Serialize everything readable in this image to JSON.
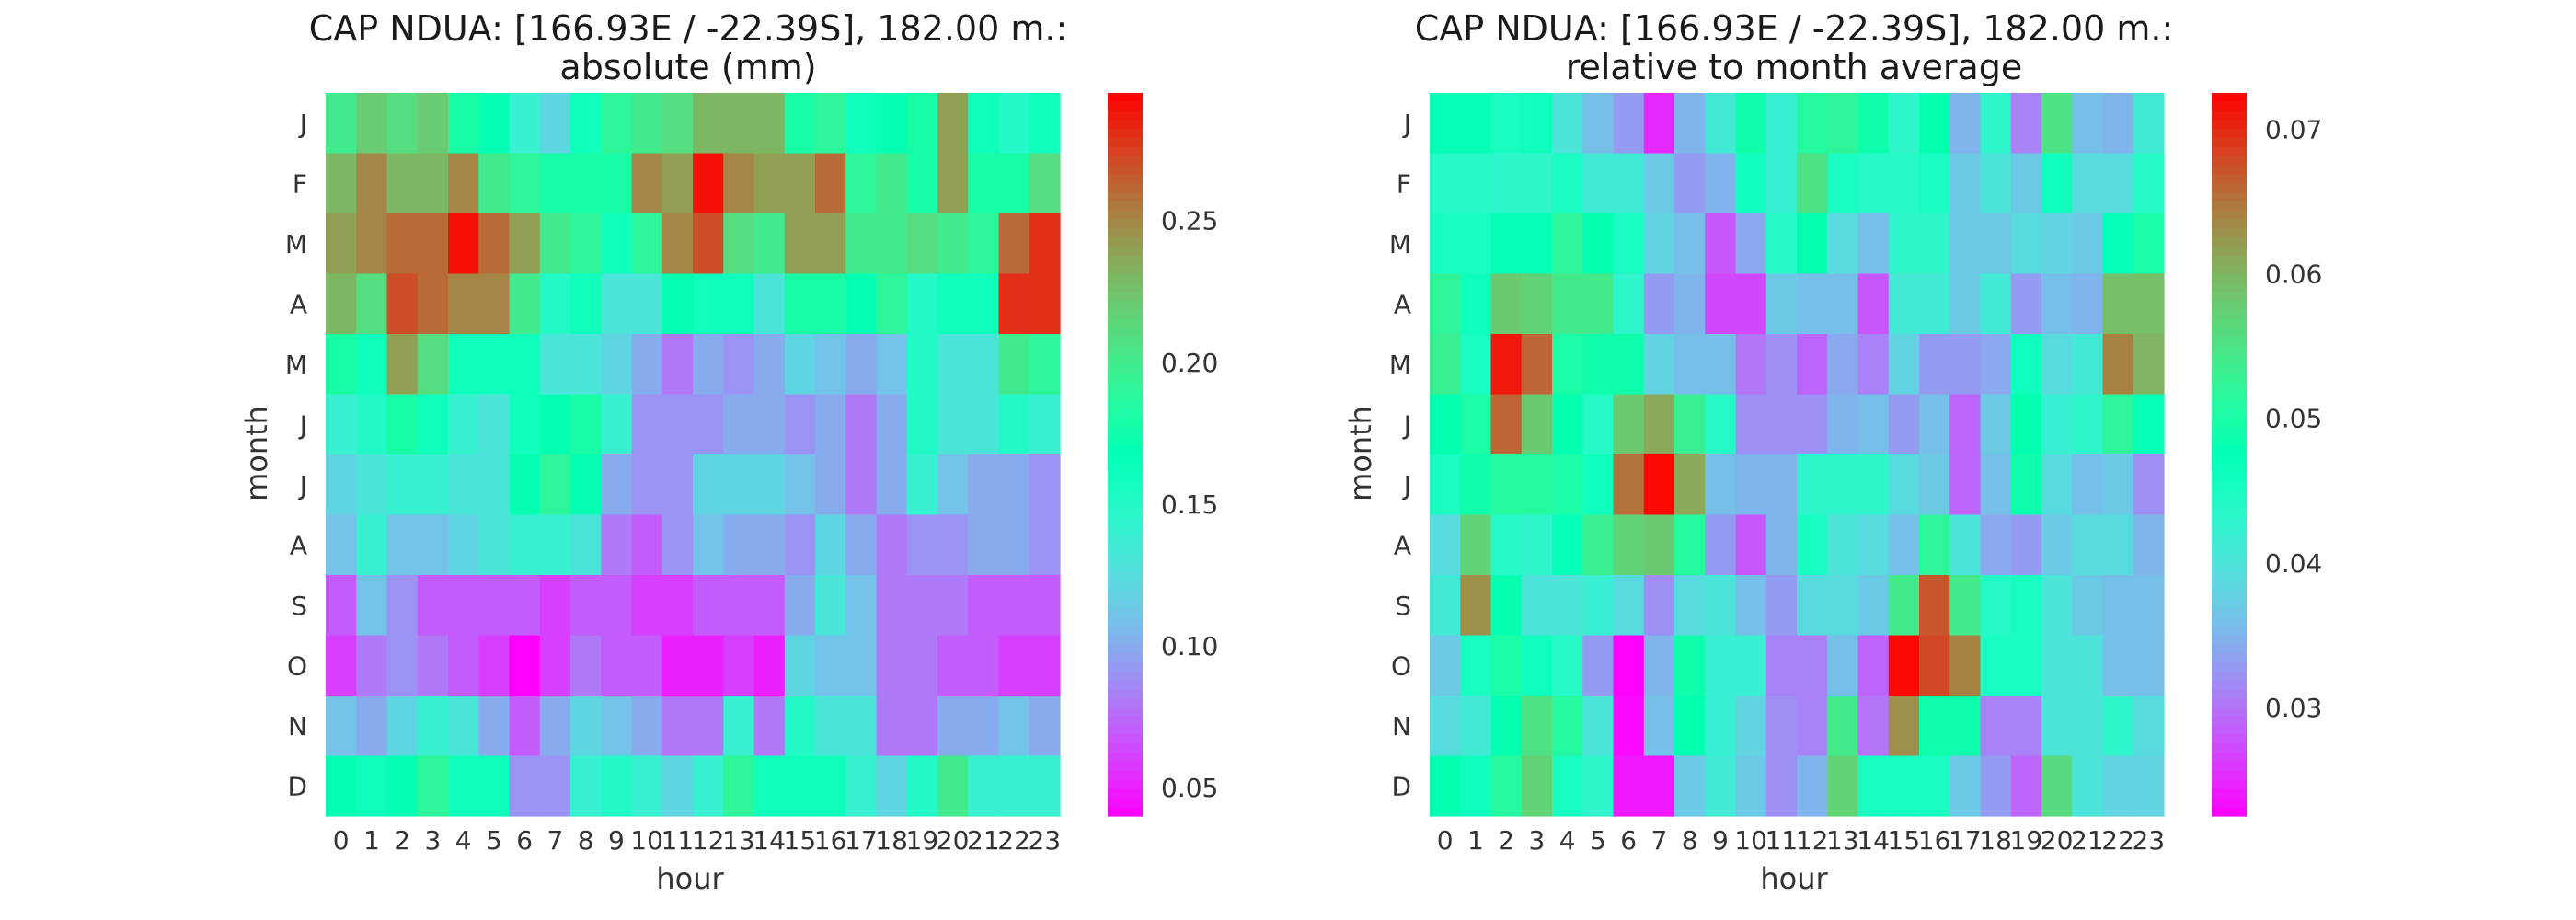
{
  "chart_data": [
    {
      "type": "heatmap",
      "title_line1": "CAP NDUA: [166.93E / -22.39S], 182.00 m.:",
      "title_line2": "absolute (mm)",
      "xlabel": "hour",
      "ylabel": "month",
      "x": [
        "0",
        "1",
        "2",
        "3",
        "4",
        "5",
        "6",
        "7",
        "8",
        "9",
        "10",
        "11",
        "12",
        "13",
        "14",
        "15",
        "16",
        "17",
        "18",
        "19",
        "20",
        "21",
        "22",
        "23"
      ],
      "y": [
        "J",
        "F",
        "M",
        "A",
        "M",
        "J",
        "J",
        "A",
        "S",
        "O",
        "N",
        "D"
      ],
      "colormap": "rainbow",
      "vmin": 0.04,
      "vmax": 0.295,
      "colorbar_ticks": [
        0.05,
        0.1,
        0.15,
        0.2,
        0.25
      ],
      "colorbar_tick_labels": [
        "0.05",
        "0.10",
        "0.15",
        "0.20",
        "0.25"
      ],
      "values": [
        [
          0.2,
          0.22,
          0.21,
          0.22,
          0.18,
          0.17,
          0.14,
          0.12,
          0.16,
          0.19,
          0.2,
          0.21,
          0.23,
          0.23,
          0.23,
          0.18,
          0.19,
          0.16,
          0.17,
          0.18,
          0.24,
          0.16,
          0.15,
          0.16
        ],
        [
          0.23,
          0.25,
          0.23,
          0.23,
          0.25,
          0.2,
          0.19,
          0.18,
          0.18,
          0.18,
          0.25,
          0.24,
          0.29,
          0.25,
          0.24,
          0.24,
          0.26,
          0.19,
          0.2,
          0.18,
          0.24,
          0.18,
          0.18,
          0.21
        ],
        [
          0.24,
          0.25,
          0.26,
          0.26,
          0.29,
          0.26,
          0.24,
          0.2,
          0.19,
          0.16,
          0.19,
          0.25,
          0.27,
          0.21,
          0.2,
          0.24,
          0.24,
          0.2,
          0.2,
          0.21,
          0.2,
          0.19,
          0.26,
          0.28
        ],
        [
          0.23,
          0.21,
          0.27,
          0.26,
          0.25,
          0.25,
          0.2,
          0.15,
          0.16,
          0.13,
          0.13,
          0.17,
          0.16,
          0.16,
          0.13,
          0.18,
          0.18,
          0.17,
          0.19,
          0.15,
          0.16,
          0.16,
          0.28,
          0.28
        ],
        [
          0.18,
          0.16,
          0.24,
          0.21,
          0.16,
          0.16,
          0.16,
          0.13,
          0.13,
          0.12,
          0.1,
          0.08,
          0.1,
          0.09,
          0.1,
          0.12,
          0.11,
          0.1,
          0.11,
          0.15,
          0.13,
          0.13,
          0.2,
          0.19
        ],
        [
          0.14,
          0.15,
          0.18,
          0.16,
          0.14,
          0.13,
          0.16,
          0.17,
          0.18,
          0.14,
          0.09,
          0.09,
          0.09,
          0.1,
          0.1,
          0.09,
          0.1,
          0.08,
          0.1,
          0.15,
          0.13,
          0.13,
          0.15,
          0.14
        ],
        [
          0.12,
          0.13,
          0.14,
          0.14,
          0.13,
          0.13,
          0.17,
          0.19,
          0.17,
          0.1,
          0.09,
          0.09,
          0.12,
          0.12,
          0.12,
          0.11,
          0.1,
          0.08,
          0.1,
          0.14,
          0.11,
          0.1,
          0.1,
          0.09
        ],
        [
          0.11,
          0.14,
          0.11,
          0.11,
          0.12,
          0.13,
          0.14,
          0.14,
          0.13,
          0.08,
          0.07,
          0.09,
          0.11,
          0.1,
          0.1,
          0.09,
          0.12,
          0.1,
          0.08,
          0.09,
          0.09,
          0.1,
          0.1,
          0.09
        ],
        [
          0.07,
          0.11,
          0.09,
          0.07,
          0.07,
          0.07,
          0.07,
          0.06,
          0.07,
          0.07,
          0.06,
          0.06,
          0.07,
          0.07,
          0.07,
          0.1,
          0.13,
          0.11,
          0.08,
          0.08,
          0.08,
          0.07,
          0.07,
          0.07
        ],
        [
          0.06,
          0.08,
          0.09,
          0.08,
          0.07,
          0.06,
          0.04,
          0.06,
          0.08,
          0.07,
          0.07,
          0.05,
          0.05,
          0.06,
          0.05,
          0.12,
          0.11,
          0.11,
          0.08,
          0.08,
          0.07,
          0.07,
          0.06,
          0.06
        ],
        [
          0.11,
          0.1,
          0.12,
          0.14,
          0.13,
          0.1,
          0.07,
          0.1,
          0.12,
          0.11,
          0.1,
          0.08,
          0.08,
          0.14,
          0.08,
          0.15,
          0.13,
          0.13,
          0.08,
          0.08,
          0.1,
          0.1,
          0.11,
          0.1
        ],
        [
          0.17,
          0.16,
          0.17,
          0.19,
          0.16,
          0.16,
          0.09,
          0.09,
          0.14,
          0.15,
          0.14,
          0.12,
          0.14,
          0.19,
          0.16,
          0.16,
          0.16,
          0.14,
          0.12,
          0.15,
          0.2,
          0.14,
          0.14,
          0.14
        ]
      ]
    },
    {
      "type": "heatmap",
      "title_line1": "CAP NDUA: [166.93E / -22.39S], 182.00 m.:",
      "title_line2": "relative to month average",
      "xlabel": "hour",
      "ylabel": "month",
      "x": [
        "0",
        "1",
        "2",
        "3",
        "4",
        "5",
        "6",
        "7",
        "8",
        "9",
        "10",
        "11",
        "12",
        "13",
        "14",
        "15",
        "16",
        "17",
        "18",
        "19",
        "20",
        "21",
        "22",
        "23"
      ],
      "y": [
        "J",
        "F",
        "M",
        "A",
        "M",
        "J",
        "J",
        "A",
        "S",
        "O",
        "N",
        "D"
      ],
      "colormap": "rainbow",
      "vmin": 0.0225,
      "vmax": 0.0725,
      "colorbar_ticks": [
        0.03,
        0.04,
        0.05,
        0.06,
        0.07
      ],
      "colorbar_tick_labels": [
        "0.03",
        "0.04",
        "0.05",
        "0.06",
        "0.07"
      ],
      "values": [
        [
          0.047,
          0.047,
          0.045,
          0.046,
          0.04,
          0.036,
          0.033,
          0.025,
          0.035,
          0.041,
          0.049,
          0.042,
          0.051,
          0.052,
          0.049,
          0.043,
          0.048,
          0.035,
          0.043,
          0.031,
          0.055,
          0.036,
          0.035,
          0.041
        ],
        [
          0.044,
          0.044,
          0.043,
          0.043,
          0.045,
          0.041,
          0.041,
          0.037,
          0.033,
          0.035,
          0.046,
          0.042,
          0.055,
          0.045,
          0.044,
          0.044,
          0.045,
          0.037,
          0.04,
          0.037,
          0.046,
          0.039,
          0.039,
          0.044
        ],
        [
          0.045,
          0.045,
          0.047,
          0.047,
          0.052,
          0.048,
          0.045,
          0.038,
          0.036,
          0.028,
          0.034,
          0.044,
          0.048,
          0.039,
          0.036,
          0.043,
          0.043,
          0.037,
          0.037,
          0.039,
          0.038,
          0.037,
          0.047,
          0.05
        ],
        [
          0.052,
          0.046,
          0.058,
          0.057,
          0.054,
          0.054,
          0.043,
          0.033,
          0.035,
          0.027,
          0.027,
          0.037,
          0.036,
          0.036,
          0.028,
          0.041,
          0.041,
          0.037,
          0.041,
          0.033,
          0.036,
          0.035,
          0.059,
          0.059
        ],
        [
          0.053,
          0.045,
          0.071,
          0.066,
          0.05,
          0.049,
          0.049,
          0.038,
          0.036,
          0.036,
          0.03,
          0.032,
          0.029,
          0.034,
          0.031,
          0.038,
          0.033,
          0.033,
          0.034,
          0.046,
          0.039,
          0.041,
          0.064,
          0.06
        ],
        [
          0.048,
          0.05,
          0.066,
          0.058,
          0.048,
          0.044,
          0.058,
          0.061,
          0.053,
          0.044,
          0.032,
          0.032,
          0.032,
          0.035,
          0.036,
          0.033,
          0.036,
          0.029,
          0.037,
          0.048,
          0.042,
          0.043,
          0.052,
          0.047
        ],
        [
          0.045,
          0.049,
          0.051,
          0.051,
          0.05,
          0.046,
          0.065,
          0.072,
          0.061,
          0.036,
          0.035,
          0.035,
          0.043,
          0.043,
          0.043,
          0.039,
          0.037,
          0.029,
          0.036,
          0.049,
          0.039,
          0.036,
          0.037,
          0.032
        ],
        [
          0.039,
          0.057,
          0.044,
          0.043,
          0.047,
          0.053,
          0.057,
          0.058,
          0.051,
          0.033,
          0.028,
          0.035,
          0.045,
          0.04,
          0.039,
          0.036,
          0.052,
          0.04,
          0.034,
          0.033,
          0.037,
          0.039,
          0.039,
          0.035
        ],
        [
          0.041,
          0.063,
          0.048,
          0.04,
          0.04,
          0.042,
          0.039,
          0.032,
          0.039,
          0.04,
          0.036,
          0.033,
          0.039,
          0.039,
          0.037,
          0.054,
          0.067,
          0.054,
          0.044,
          0.045,
          0.04,
          0.037,
          0.036,
          0.036
        ],
        [
          0.037,
          0.045,
          0.05,
          0.046,
          0.044,
          0.033,
          0.022,
          0.035,
          0.049,
          0.042,
          0.042,
          0.031,
          0.031,
          0.036,
          0.029,
          0.072,
          0.068,
          0.064,
          0.045,
          0.045,
          0.04,
          0.04,
          0.036,
          0.036
        ],
        [
          0.039,
          0.041,
          0.048,
          0.055,
          0.051,
          0.04,
          0.023,
          0.036,
          0.048,
          0.042,
          0.038,
          0.032,
          0.031,
          0.054,
          0.03,
          0.063,
          0.049,
          0.049,
          0.031,
          0.031,
          0.04,
          0.04,
          0.043,
          0.039
        ],
        [
          0.048,
          0.046,
          0.051,
          0.057,
          0.045,
          0.043,
          0.024,
          0.024,
          0.037,
          0.041,
          0.037,
          0.032,
          0.035,
          0.057,
          0.045,
          0.045,
          0.045,
          0.037,
          0.033,
          0.029,
          0.056,
          0.04,
          0.038,
          0.038
        ]
      ]
    }
  ]
}
